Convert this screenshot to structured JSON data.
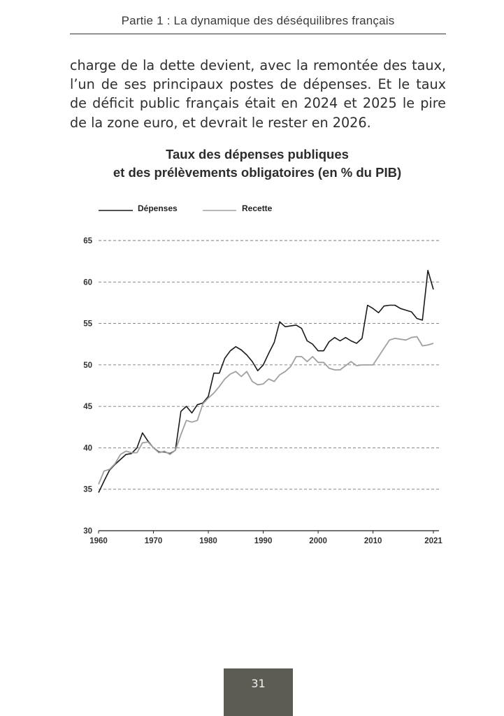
{
  "header": {
    "running_title": "Partie 1 : La dynamique des déséquilibres français"
  },
  "body": {
    "paragraph": "charge de la dette devient, avec la remontée des taux, l’un de ses principaux postes de dépenses. Et le taux de déficit public français était en 2024 et 2025 le pire de la zone euro, et devrait le rester en 2026."
  },
  "footer": {
    "page_number": "31"
  },
  "chart_data": {
    "type": "line",
    "title_line1": "Taux des dépenses publiques",
    "title_line2": "et des prélèvements obligatoires (en % du PIB)",
    "xlabel": "",
    "ylabel": "",
    "xlim": [
      1960,
      2021
    ],
    "ylim": [
      30,
      65
    ],
    "x_ticks": [
      1960,
      1970,
      1980,
      1990,
      2000,
      2010,
      2021
    ],
    "y_ticks": [
      30,
      35,
      40,
      45,
      50,
      55,
      60,
      65
    ],
    "grid": "horizontal-dashed",
    "legend_position": "top-left",
    "series": [
      {
        "name": "Dépenses",
        "color": "#1a1a1a",
        "points": [
          [
            1960,
            34.6
          ],
          [
            1961,
            36.0
          ],
          [
            1962,
            37.3
          ],
          [
            1963,
            38.0
          ],
          [
            1964,
            38.6
          ],
          [
            1965,
            39.2
          ],
          [
            1966,
            39.3
          ],
          [
            1967,
            40.0
          ],
          [
            1968,
            41.8
          ],
          [
            1969,
            40.8
          ],
          [
            1970,
            40.0
          ],
          [
            1971,
            39.5
          ],
          [
            1972,
            39.5
          ],
          [
            1973,
            39.3
          ],
          [
            1974,
            39.7
          ],
          [
            1975,
            44.4
          ],
          [
            1976,
            45.0
          ],
          [
            1977,
            44.2
          ],
          [
            1978,
            45.2
          ],
          [
            1979,
            45.4
          ],
          [
            1980,
            46.2
          ],
          [
            1981,
            49.0
          ],
          [
            1982,
            49.0
          ],
          [
            1983,
            50.8
          ],
          [
            1984,
            51.7
          ],
          [
            1985,
            52.2
          ],
          [
            1986,
            51.8
          ],
          [
            1987,
            51.2
          ],
          [
            1988,
            50.4
          ],
          [
            1989,
            49.3
          ],
          [
            1990,
            50.0
          ],
          [
            1991,
            51.4
          ],
          [
            1992,
            52.7
          ],
          [
            1993,
            55.2
          ],
          [
            1994,
            54.6
          ],
          [
            1995,
            54.7
          ],
          [
            1996,
            54.8
          ],
          [
            1997,
            54.4
          ],
          [
            1998,
            52.9
          ],
          [
            1999,
            52.5
          ],
          [
            2000,
            51.7
          ],
          [
            2001,
            51.7
          ],
          [
            2002,
            52.8
          ],
          [
            2003,
            53.3
          ],
          [
            2004,
            52.9
          ],
          [
            2005,
            53.3
          ],
          [
            2006,
            52.9
          ],
          [
            2007,
            52.6
          ],
          [
            2008,
            53.2
          ],
          [
            2009,
            57.2
          ],
          [
            2010,
            56.8
          ],
          [
            2011,
            56.3
          ],
          [
            2012,
            57.1
          ],
          [
            2013,
            57.2
          ],
          [
            2014,
            57.2
          ],
          [
            2015,
            56.8
          ],
          [
            2016,
            56.6
          ],
          [
            2017,
            56.4
          ],
          [
            2018,
            55.6
          ],
          [
            2019,
            55.4
          ],
          [
            2020,
            61.4
          ],
          [
            2021,
            59.1
          ]
        ]
      },
      {
        "name": "Recette",
        "color": "#a0a0a0",
        "points": [
          [
            1960,
            35.6
          ],
          [
            1961,
            37.2
          ],
          [
            1962,
            37.4
          ],
          [
            1963,
            38.1
          ],
          [
            1964,
            39.2
          ],
          [
            1965,
            39.6
          ],
          [
            1966,
            39.4
          ],
          [
            1967,
            39.4
          ],
          [
            1968,
            40.6
          ],
          [
            1969,
            40.7
          ],
          [
            1970,
            40.0
          ],
          [
            1971,
            39.4
          ],
          [
            1972,
            39.6
          ],
          [
            1973,
            39.2
          ],
          [
            1974,
            39.7
          ],
          [
            1975,
            41.6
          ],
          [
            1976,
            43.3
          ],
          [
            1977,
            43.1
          ],
          [
            1978,
            43.3
          ],
          [
            1979,
            45.3
          ],
          [
            1980,
            46.0
          ],
          [
            1981,
            46.6
          ],
          [
            1982,
            47.4
          ],
          [
            1983,
            48.3
          ],
          [
            1984,
            48.9
          ],
          [
            1985,
            49.2
          ],
          [
            1986,
            48.6
          ],
          [
            1987,
            49.2
          ],
          [
            1988,
            48.0
          ],
          [
            1989,
            47.6
          ],
          [
            1990,
            47.7
          ],
          [
            1991,
            48.3
          ],
          [
            1992,
            48.0
          ],
          [
            1993,
            48.8
          ],
          [
            1994,
            49.2
          ],
          [
            1995,
            49.8
          ],
          [
            1996,
            51.0
          ],
          [
            1997,
            51.0
          ],
          [
            1998,
            50.4
          ],
          [
            1999,
            51.0
          ],
          [
            2000,
            50.3
          ],
          [
            2001,
            50.3
          ],
          [
            2002,
            49.6
          ],
          [
            2003,
            49.4
          ],
          [
            2004,
            49.4
          ],
          [
            2005,
            49.9
          ],
          [
            2006,
            50.4
          ],
          [
            2007,
            49.9
          ],
          [
            2008,
            50.0
          ],
          [
            2009,
            50.0
          ],
          [
            2010,
            50.0
          ],
          [
            2011,
            51.0
          ],
          [
            2012,
            52.0
          ],
          [
            2013,
            53.0
          ],
          [
            2014,
            53.2
          ],
          [
            2015,
            53.1
          ],
          [
            2016,
            53.0
          ],
          [
            2017,
            53.3
          ],
          [
            2018,
            53.4
          ],
          [
            2019,
            52.3
          ],
          [
            2020,
            52.4
          ],
          [
            2021,
            52.6
          ]
        ]
      }
    ]
  }
}
